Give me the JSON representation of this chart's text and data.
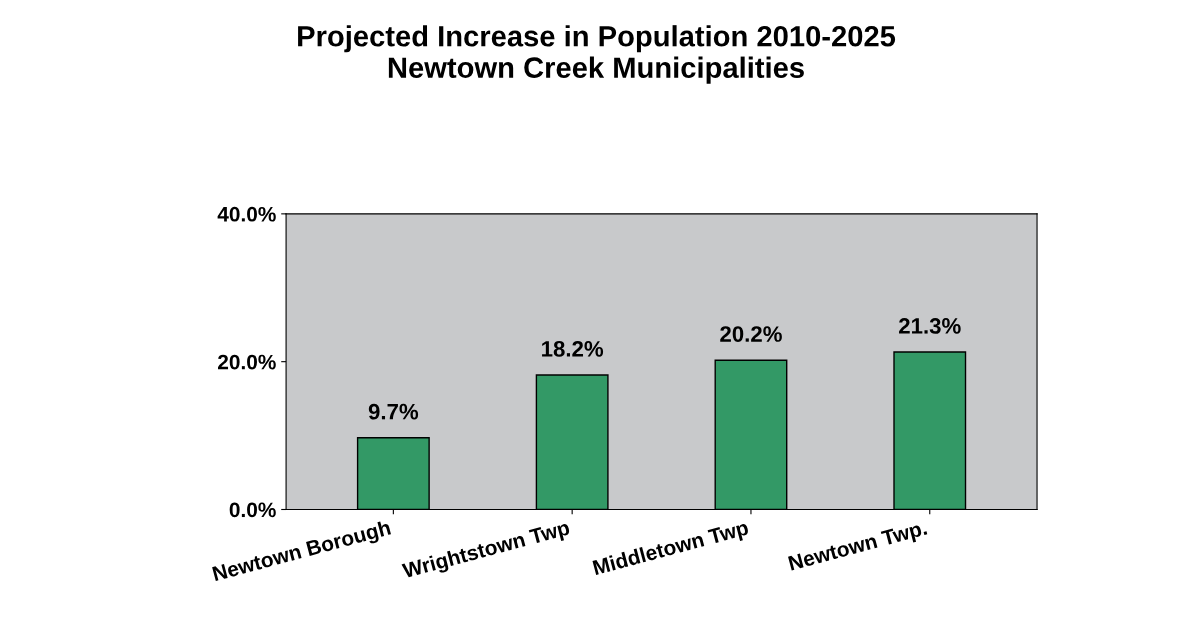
{
  "chart_data": {
    "type": "bar",
    "title": "Projected Increase in Population 2010-2025\nNewtown Creek Municipalities",
    "categories": [
      "Newtown Borough",
      "Wrightstown Twp",
      "Middletown Twp",
      "Newtown Twp."
    ],
    "values": [
      9.7,
      18.2,
      20.2,
      21.3
    ],
    "value_labels": [
      "9.7%",
      "18.2%",
      "20.2%",
      "21.3%"
    ],
    "color": "#339966",
    "ylim": [
      0,
      40
    ],
    "yticks": [
      {
        "value": 0,
        "label": "0.0%"
      },
      {
        "value": 20,
        "label": "20.0%"
      },
      {
        "value": 40,
        "label": "40.0%"
      }
    ],
    "grid": false
  }
}
